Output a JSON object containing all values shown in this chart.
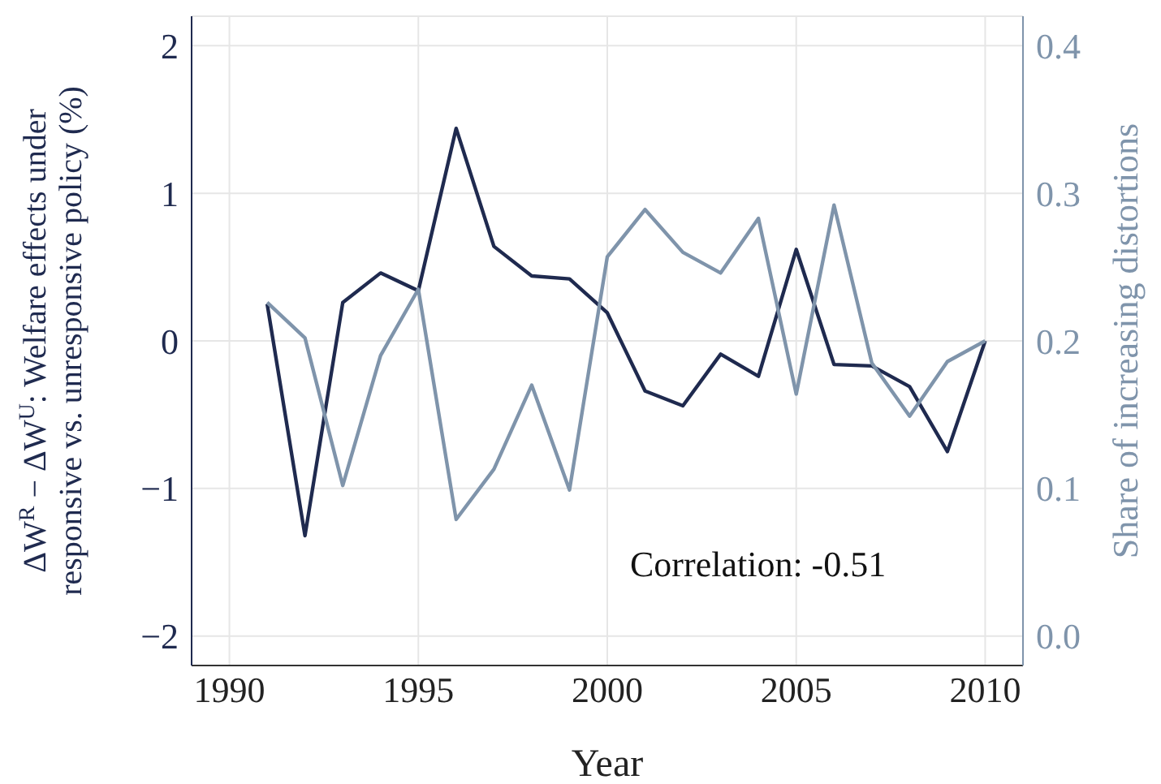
{
  "chart_data": {
    "type": "line",
    "xlabel": "Year",
    "ylabel": "ΔW$^{R}$ − ΔW$^{U}$: Welfare effects under responsive vs. unresponsive policy (%)",
    "y2label": "Share of increasing distortions",
    "x": [
      1991,
      1992,
      1993,
      1994,
      1995,
      1996,
      1997,
      1998,
      1999,
      2000,
      2001,
      2002,
      2003,
      2004,
      2005,
      2006,
      2007,
      2008,
      2009,
      2010
    ],
    "series": [
      {
        "color": "#1f2a4f",
        "values": [
          0.25,
          -1.32,
          0.26,
          0.46,
          0.34,
          1.44,
          0.64,
          0.44,
          0.42,
          0.19,
          -0.34,
          -0.44,
          -0.09,
          -0.24,
          0.62,
          -0.16,
          -0.17,
          -0.31,
          -0.75,
          0.0
        ]
      },
      {
        "color": "#7f94ab",
        "axis": "y2",
        "values": [
          0.226,
          0.202,
          0.102,
          0.19,
          0.235,
          0.079,
          0.113,
          0.17,
          0.099,
          0.257,
          0.289,
          0.26,
          0.246,
          0.283,
          0.164,
          0.292,
          0.185,
          0.149,
          0.186,
          0.2
        ]
      }
    ],
    "xlim": [
      1989,
      2011
    ],
    "xticks": [
      1990,
      1995,
      2000,
      2005,
      2010
    ],
    "ylim": [
      -2.2,
      2.2
    ],
    "yticks": [
      {
        "value": -2,
        "label": "−2"
      },
      {
        "value": -1,
        "label": "−1"
      },
      0,
      1,
      2
    ],
    "y2lim": [
      -0.02,
      0.42
    ],
    "y2ticks": [
      {
        "value": 0,
        "label": "0.0"
      },
      {
        "value": 0.1,
        "label": "0.1"
      },
      {
        "value": 0.2,
        "label": "0.2"
      },
      {
        "value": 0.3,
        "label": "0.3"
      },
      {
        "value": 0.4,
        "label": "0.4"
      }
    ],
    "annotations": [
      "Correlation: -0.51"
    ],
    "grid": true,
    "marker": "none",
    "line_style": "solid"
  }
}
